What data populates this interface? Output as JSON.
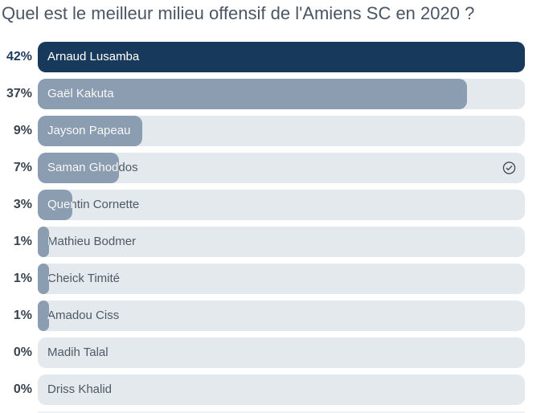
{
  "title": "Quel est le meilleur milieu offensif de l'Amiens SC en 2020 ?",
  "poll": {
    "max_value": 42,
    "voted_index": 3,
    "voted_icon": "check-circle-icon",
    "options": [
      {
        "name": "Arnaud Lusamba",
        "percent_label": "42%",
        "value": 42
      },
      {
        "name": "Gaël Kakuta",
        "percent_label": "37%",
        "value": 37
      },
      {
        "name": "Jayson Papeau",
        "percent_label": "9%",
        "value": 9
      },
      {
        "name": "Saman Ghoddos",
        "percent_label": "7%",
        "value": 7,
        "voted": true
      },
      {
        "name": "Quentin Cornette",
        "percent_label": "3%",
        "value": 3
      },
      {
        "name": "Mathieu Bodmer",
        "percent_label": "1%",
        "value": 1
      },
      {
        "name": "Cheick Timité",
        "percent_label": "1%",
        "value": 1
      },
      {
        "name": "Amadou Ciss",
        "percent_label": "1%",
        "value": 1
      },
      {
        "name": "Madih Talal",
        "percent_label": "0%",
        "value": 0
      },
      {
        "name": "Driss Khalid",
        "percent_label": "0%",
        "value": 0
      }
    ]
  },
  "colors": {
    "winner_bar": "#17395c",
    "other_bar": "#8a9db1",
    "track": "#e3e9ed",
    "winner_percent_text": "#1d3a5f",
    "percent_text": "#39434e",
    "name_on_bar": "#ffffff",
    "name_on_track": "#4e5a66",
    "question_text": "#4a5663",
    "check_icon": "#3d4752"
  },
  "chart_data": {
    "type": "bar",
    "orientation": "horizontal",
    "title": "Quel est le meilleur milieu offensif de l'Amiens SC en 2020 ?",
    "categories": [
      "Arnaud Lusamba",
      "Gaël Kakuta",
      "Jayson Papeau",
      "Saman Ghoddos",
      "Quentin Cornette",
      "Mathieu Bodmer",
      "Cheick Timité",
      "Amadou Ciss",
      "Madih Talal",
      "Driss Khalid"
    ],
    "values": [
      42,
      37,
      9,
      7,
      3,
      1,
      1,
      1,
      0,
      0
    ],
    "value_labels": [
      "42%",
      "37%",
      "9%",
      "7%",
      "3%",
      "1%",
      "1%",
      "1%",
      "0%",
      "0%"
    ],
    "unit": "%",
    "xlim": [
      0,
      42
    ],
    "bar_scale_note": "bar lengths scaled so the max value (42%) fills the track",
    "annotations": [
      "check-circle icon on 'Saman Ghoddos' row marks the user's vote"
    ]
  }
}
